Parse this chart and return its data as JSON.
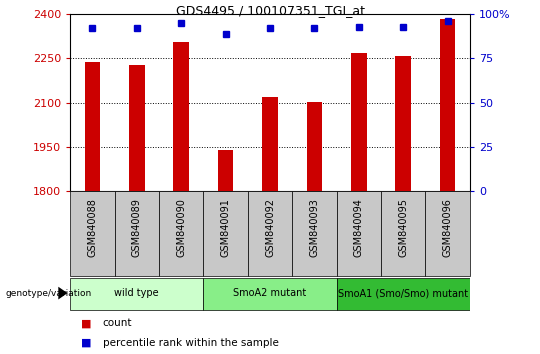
{
  "title": "GDS4495 / 100107351_TGI_at",
  "samples": [
    "GSM840088",
    "GSM840089",
    "GSM840090",
    "GSM840091",
    "GSM840092",
    "GSM840093",
    "GSM840094",
    "GSM840095",
    "GSM840096"
  ],
  "counts": [
    2238,
    2228,
    2305,
    1940,
    2118,
    2103,
    2268,
    2258,
    2385
  ],
  "percentiles": [
    92,
    92,
    95,
    89,
    92,
    92,
    93,
    93,
    96
  ],
  "ylim_left": [
    1800,
    2400
  ],
  "yticks_left": [
    1800,
    1950,
    2100,
    2250,
    2400
  ],
  "ylim_right": [
    0,
    100
  ],
  "yticks_right": [
    0,
    25,
    50,
    75,
    100
  ],
  "bar_color": "#cc0000",
  "dot_color": "#0000cc",
  "bar_width": 0.35,
  "groups": [
    {
      "label": "wild type",
      "start": 0,
      "end": 3,
      "color": "#ccffcc"
    },
    {
      "label": "SmoA2 mutant",
      "start": 3,
      "end": 6,
      "color": "#88ee88"
    },
    {
      "label": "SmoA1 (Smo/Smo) mutant",
      "start": 6,
      "end": 9,
      "color": "#33bb33"
    }
  ],
  "tick_color_left": "#cc0000",
  "tick_color_right": "#0000cc",
  "background_color": "#ffffff",
  "plot_bg_color": "#ffffff",
  "xtick_bg_color": "#c8c8c8",
  "genotype_label": "genotype/variation",
  "legend_count_label": "count",
  "legend_pct_label": "percentile rank within the sample",
  "legend_count_color": "#cc0000",
  "legend_pct_color": "#0000cc"
}
